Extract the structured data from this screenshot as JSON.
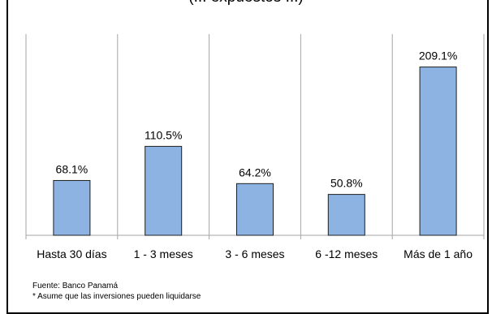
{
  "chart_data": {
    "type": "bar",
    "title": "(... expuestos ...)",
    "categories": [
      "Hasta 30 días",
      "1 - 3 meses",
      "3 - 6 meses",
      "6 -12 meses",
      "Más de 1 año"
    ],
    "values": [
      68.1,
      110.5,
      64.2,
      50.8,
      209.1
    ],
    "value_labels": [
      "68.1%",
      "110.5%",
      "64.2%",
      "50.8%",
      "209.1%"
    ],
    "ylim": [
      0,
      250
    ],
    "grid": "vertical separators",
    "legend": "none",
    "bar_color": "#8DB3E2"
  },
  "notes": {
    "source": "Fuente: Banco Panamá",
    "footnote": "* Asume que las inversiones pueden liquidarse"
  }
}
